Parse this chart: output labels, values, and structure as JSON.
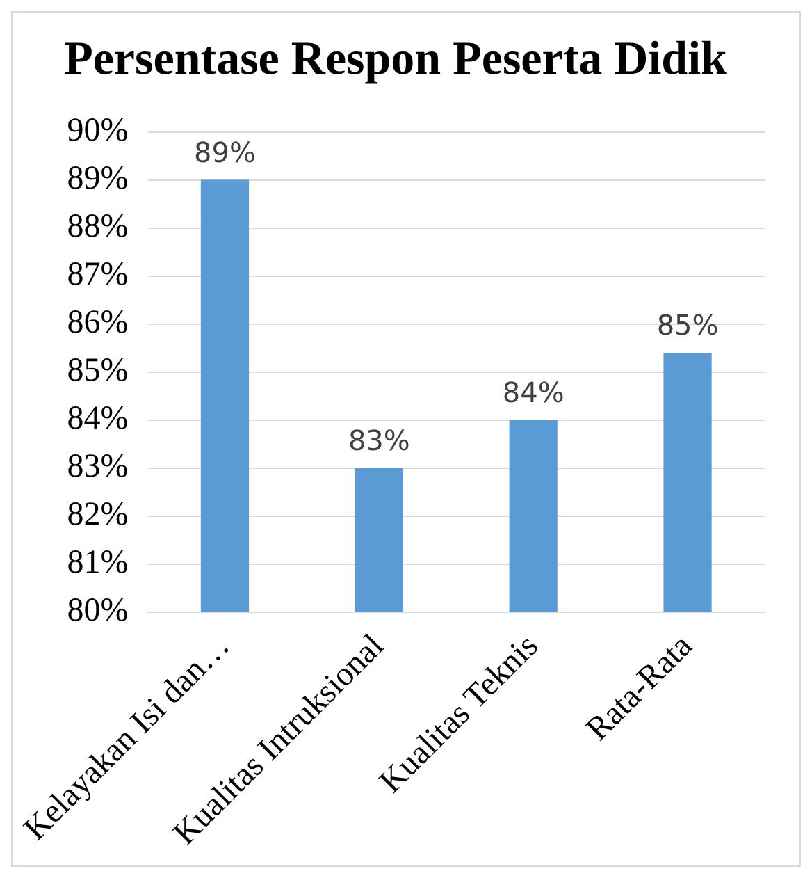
{
  "chart_data": {
    "type": "bar",
    "title": "Persentase Respon Peserta Didik",
    "categories": [
      "Kelayakan Isi dan…",
      "Kualitas Intruksional",
      "Kualitas Teknis",
      "Rata-Rata"
    ],
    "values": [
      89,
      83,
      84,
      85.4
    ],
    "color": "#5b9bd5",
    "value_labels": [
      "89%",
      "83%",
      "84%",
      "85%"
    ],
    "ylim": [
      80,
      90
    ],
    "yticks": [
      {
        "value": 80,
        "label": "80%"
      },
      {
        "value": 81,
        "label": "81%"
      },
      {
        "value": 82,
        "label": "82%"
      },
      {
        "value": 83,
        "label": "83%"
      },
      {
        "value": 84,
        "label": "84%"
      },
      {
        "value": 85,
        "label": "85%"
      },
      {
        "value": 86,
        "label": "86%"
      },
      {
        "value": 87,
        "label": "87%"
      },
      {
        "value": 88,
        "label": "88%"
      },
      {
        "value": 89,
        "label": "89%"
      },
      {
        "value": 90,
        "label": "90%"
      }
    ],
    "grid": "y"
  }
}
